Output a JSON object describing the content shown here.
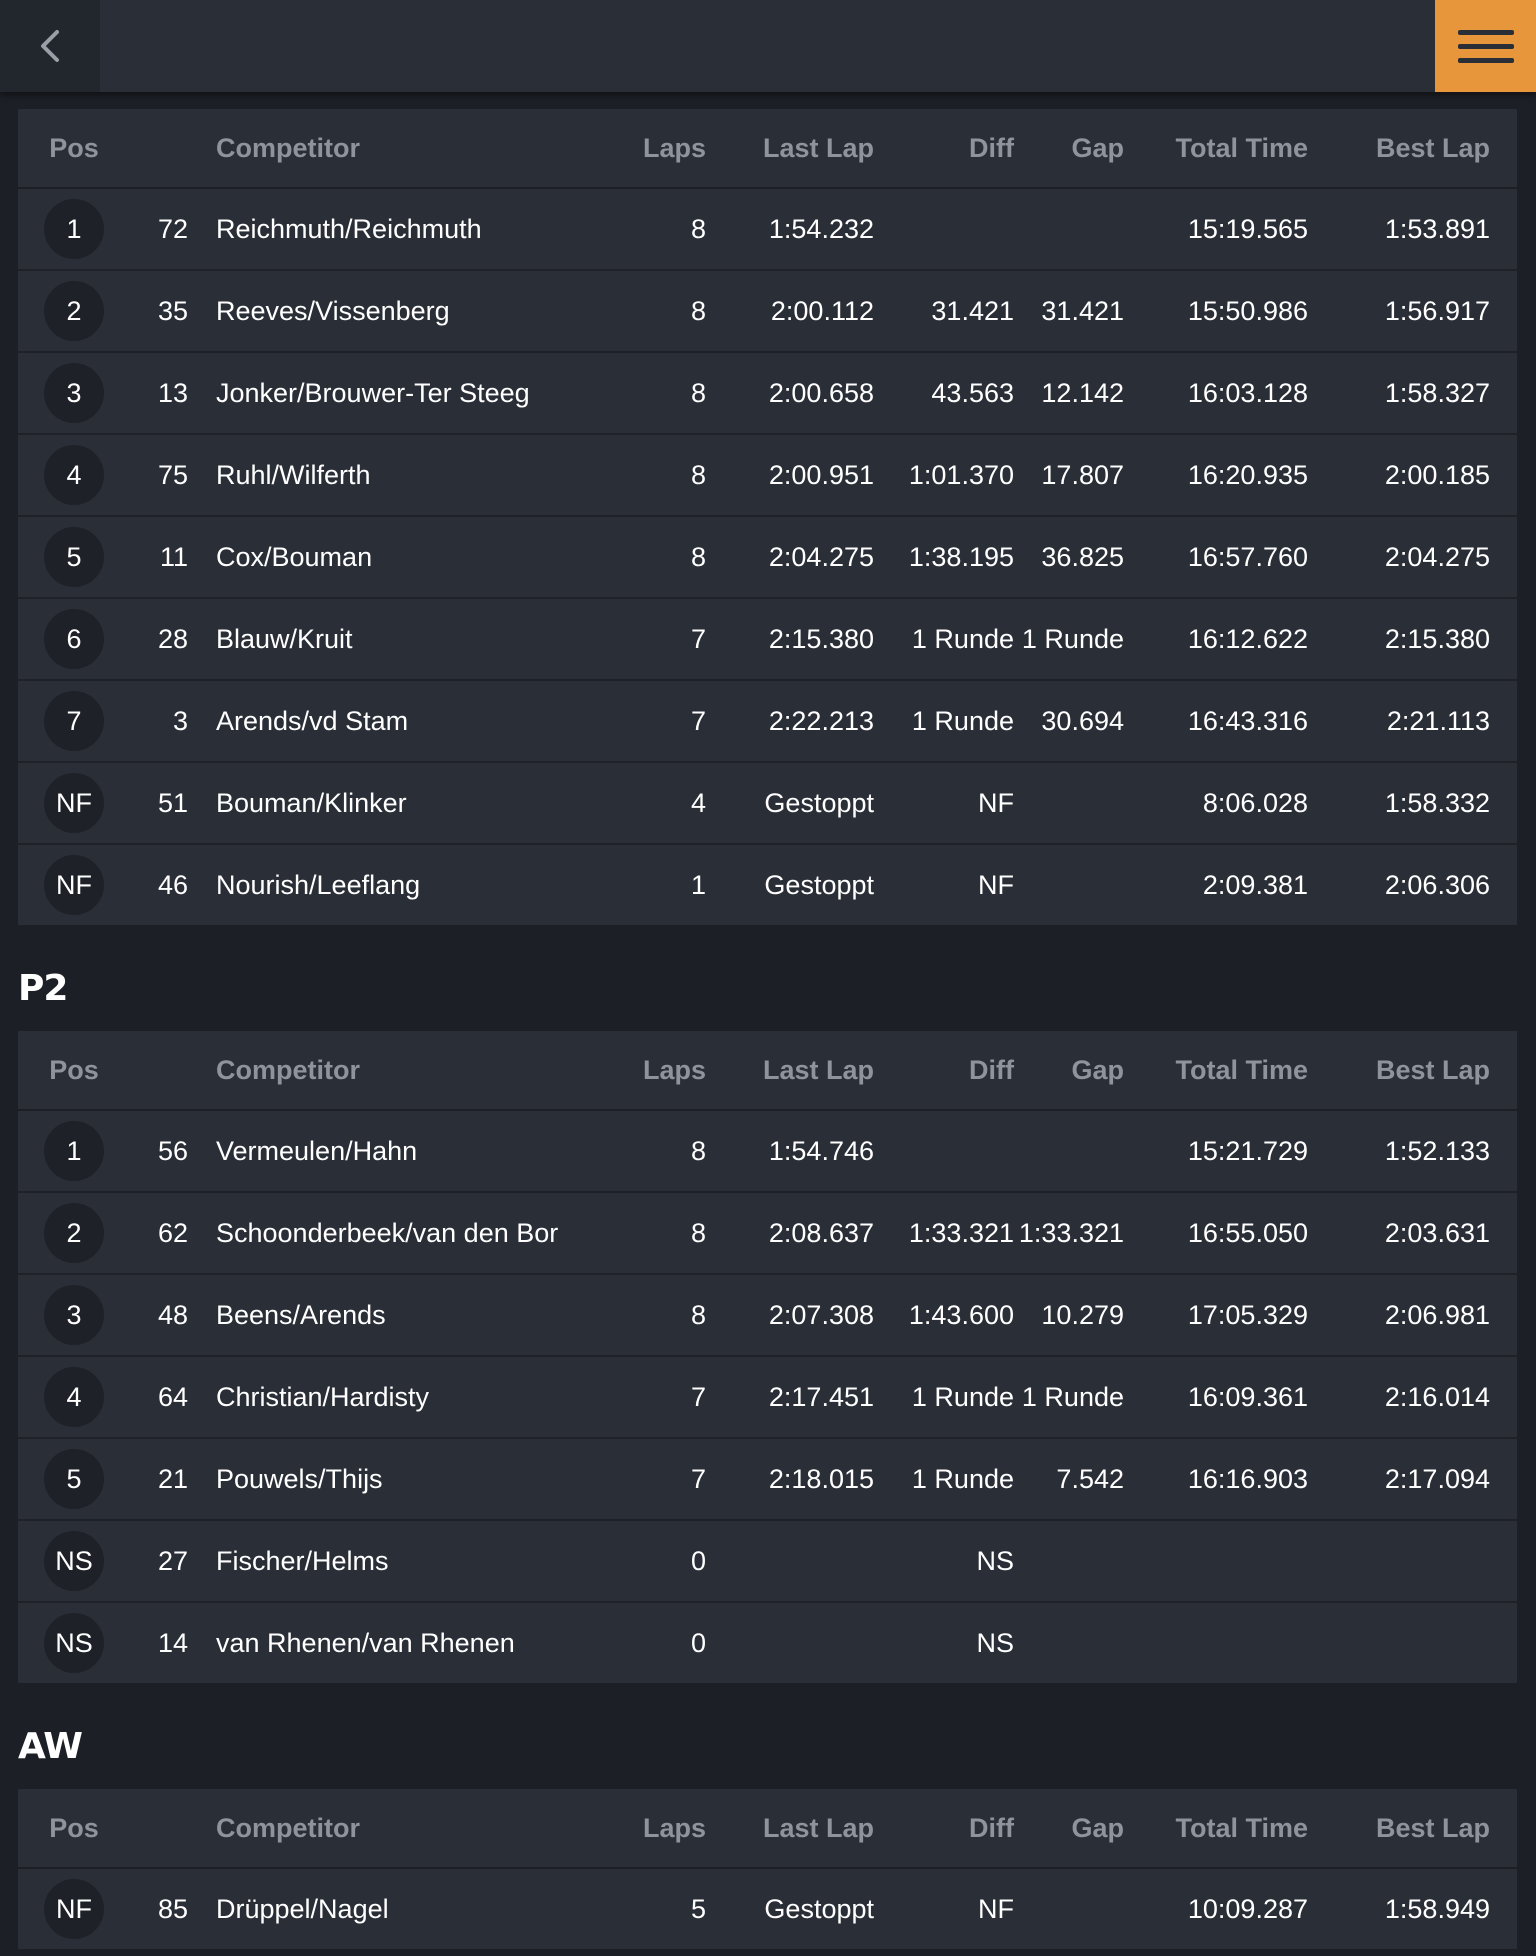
{
  "nav": {
    "back_icon": "chevron-left-icon",
    "menu_icon": "hamburger-menu-icon",
    "accent": "#e8963c"
  },
  "columns": {
    "pos": "Pos",
    "competitor": "Competitor",
    "laps": "Laps",
    "last_lap": "Last Lap",
    "diff": "Diff",
    "gap": "Gap",
    "total_time": "Total Time",
    "best_lap": "Best Lap"
  },
  "classes": [
    {
      "title": "",
      "rows": [
        {
          "pos": "1",
          "num": "72",
          "competitor": "Reichmuth/Reichmuth",
          "laps": "8",
          "last_lap": "1:54.232",
          "diff": "",
          "gap": "",
          "total": "15:19.565",
          "best": "1:53.891"
        },
        {
          "pos": "2",
          "num": "35",
          "competitor": "Reeves/Vissenberg",
          "laps": "8",
          "last_lap": "2:00.112",
          "diff": "31.421",
          "gap": "31.421",
          "total": "15:50.986",
          "best": "1:56.917"
        },
        {
          "pos": "3",
          "num": "13",
          "competitor": "Jonker/Brouwer-Ter Steeg",
          "laps": "8",
          "last_lap": "2:00.658",
          "diff": "43.563",
          "gap": "12.142",
          "total": "16:03.128",
          "best": "1:58.327"
        },
        {
          "pos": "4",
          "num": "75",
          "competitor": "Ruhl/Wilferth",
          "laps": "8",
          "last_lap": "2:00.951",
          "diff": "1:01.370",
          "gap": "17.807",
          "total": "16:20.935",
          "best": "2:00.185"
        },
        {
          "pos": "5",
          "num": "11",
          "competitor": "Cox/Bouman",
          "laps": "8",
          "last_lap": "2:04.275",
          "diff": "1:38.195",
          "gap": "36.825",
          "total": "16:57.760",
          "best": "2:04.275"
        },
        {
          "pos": "6",
          "num": "28",
          "competitor": "Blauw/Kruit",
          "laps": "7",
          "last_lap": "2:15.380",
          "diff": "1 Runde",
          "gap": "1 Runde",
          "total": "16:12.622",
          "best": "2:15.380"
        },
        {
          "pos": "7",
          "num": "3",
          "competitor": "Arends/vd Stam",
          "laps": "7",
          "last_lap": "2:22.213",
          "diff": "1 Runde",
          "gap": "30.694",
          "total": "16:43.316",
          "best": "2:21.113"
        },
        {
          "pos": "NF",
          "num": "51",
          "competitor": "Bouman/Klinker",
          "laps": "4",
          "last_lap": "Gestoppt",
          "diff": "NF",
          "gap": "",
          "total": "8:06.028",
          "best": "1:58.332"
        },
        {
          "pos": "NF",
          "num": "46",
          "competitor": "Nourish/Leeflang",
          "laps": "1",
          "last_lap": "Gestoppt",
          "diff": "NF",
          "gap": "",
          "total": "2:09.381",
          "best": "2:06.306"
        }
      ]
    },
    {
      "title": "P2",
      "rows": [
        {
          "pos": "1",
          "num": "56",
          "competitor": "Vermeulen/Hahn",
          "laps": "8",
          "last_lap": "1:54.746",
          "diff": "",
          "gap": "",
          "total": "15:21.729",
          "best": "1:52.133"
        },
        {
          "pos": "2",
          "num": "62",
          "competitor": "Schoonderbeek/van den Bor",
          "laps": "8",
          "last_lap": "2:08.637",
          "diff": "1:33.321",
          "gap": "1:33.321",
          "total": "16:55.050",
          "best": "2:03.631"
        },
        {
          "pos": "3",
          "num": "48",
          "competitor": "Beens/Arends",
          "laps": "8",
          "last_lap": "2:07.308",
          "diff": "1:43.600",
          "gap": "10.279",
          "total": "17:05.329",
          "best": "2:06.981"
        },
        {
          "pos": "4",
          "num": "64",
          "competitor": "Christian/Hardisty",
          "laps": "7",
          "last_lap": "2:17.451",
          "diff": "1 Runde",
          "gap": "1 Runde",
          "total": "16:09.361",
          "best": "2:16.014"
        },
        {
          "pos": "5",
          "num": "21",
          "competitor": "Pouwels/Thijs",
          "laps": "7",
          "last_lap": "2:18.015",
          "diff": "1 Runde",
          "gap": "7.542",
          "total": "16:16.903",
          "best": "2:17.094"
        },
        {
          "pos": "NS",
          "num": "27",
          "competitor": "Fischer/Helms",
          "laps": "0",
          "last_lap": "",
          "diff": "NS",
          "gap": "",
          "total": "",
          "best": ""
        },
        {
          "pos": "NS",
          "num": "14",
          "competitor": "van Rhenen/van Rhenen",
          "laps": "0",
          "last_lap": "",
          "diff": "NS",
          "gap": "",
          "total": "",
          "best": ""
        }
      ]
    },
    {
      "title": "AW",
      "rows": [
        {
          "pos": "NF",
          "num": "85",
          "competitor": "Drüppel/Nagel",
          "laps": "5",
          "last_lap": "Gestoppt",
          "diff": "NF",
          "gap": "",
          "total": "10:09.287",
          "best": "1:58.949"
        }
      ]
    }
  ]
}
